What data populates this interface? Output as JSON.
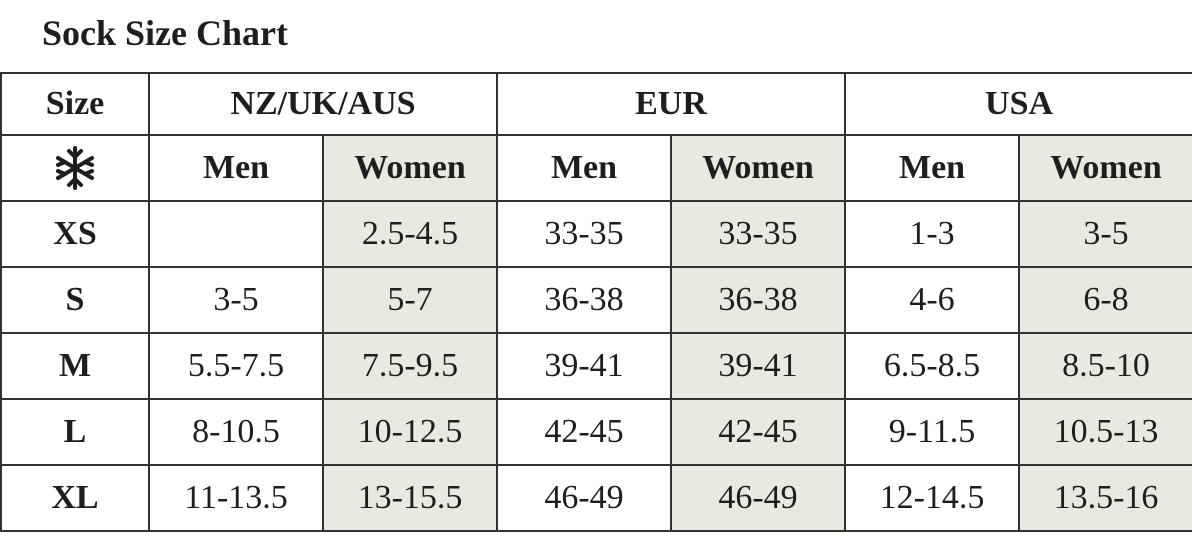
{
  "title": "Sock Size Chart",
  "table": {
    "header": [
      "Size",
      "NZ/UK/AUS",
      "EUR",
      "USA"
    ],
    "subheader": [
      "Men",
      "Women",
      "Men",
      "Women",
      "Men",
      "Women"
    ],
    "rows": [
      [
        "XS",
        null,
        "2.5-4.5",
        "33-35",
        "33-35",
        "1-3",
        "3-5"
      ],
      [
        "S",
        "3-5",
        "5-7",
        "36-38",
        "36-38",
        "4-6",
        "6-8"
      ],
      [
        "M",
        "5.5-7.5",
        "7.5-9.5",
        "39-41",
        "39-41",
        "6.5-8.5",
        "8.5-10"
      ],
      [
        "L",
        "8-10.5",
        "10-12.5",
        "42-45",
        "42-45",
        "9-11.5",
        "10.5-13"
      ],
      [
        "XL",
        "11-13.5",
        "13-15.5",
        "46-49",
        "46-49",
        "12-14.5",
        "13.5-16"
      ]
    ]
  }
}
